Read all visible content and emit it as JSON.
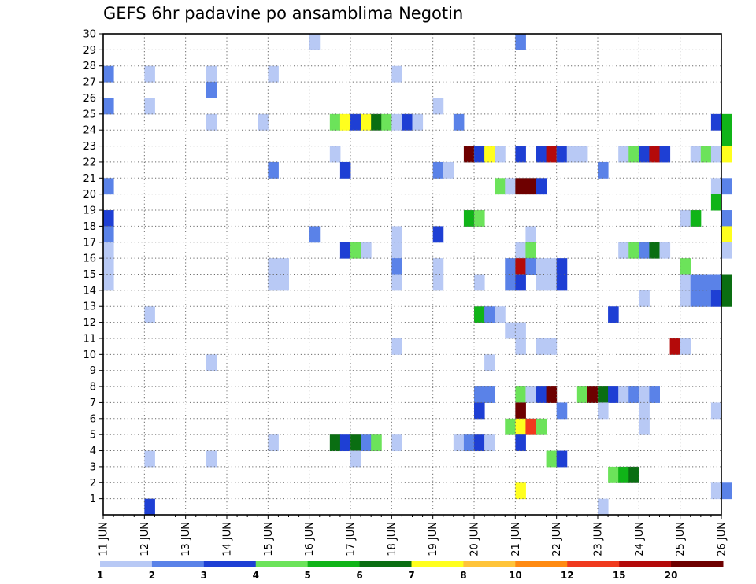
{
  "chart_data": {
    "type": "heatmap",
    "title": "GEFS 6hr padavine po ansamblima Negotin",
    "xlabel": "",
    "ylabel": "",
    "x_tick_labels": [
      "11 JUN",
      "12 JUN",
      "13 JUN",
      "14 JUN",
      "15 JUN",
      "16 JUN",
      "17 JUN",
      "18 JUN",
      "19 JUN",
      "20 JUN",
      "21 JUN",
      "22 JUN",
      "23 JUN",
      "24 JUN",
      "25 JUN",
      "26 JUN"
    ],
    "y_tick_labels": [
      "1",
      "2",
      "3",
      "4",
      "5",
      "6",
      "7",
      "8",
      "9",
      "10",
      "11",
      "12",
      "13",
      "14",
      "15",
      "16",
      "17",
      "18",
      "19",
      "20",
      "21",
      "22",
      "23",
      "24",
      "25",
      "26",
      "27",
      "28",
      "29",
      "30"
    ],
    "x_step": "6hr",
    "grid": true,
    "legend": {
      "placement": "bottom",
      "labels": [
        "1",
        "2",
        "3",
        "4",
        "5",
        "6",
        "7",
        "8",
        "10",
        "12",
        "15",
        "20"
      ],
      "colors": [
        "#b8c9f5",
        "#5a82e8",
        "#1e3fd4",
        "#6ce35a",
        "#10b418",
        "#0a6e12",
        "#ffff1e",
        "#ffc43a",
        "#ff8a12",
        "#f03a1e",
        "#b40a0a",
        "#6e0000"
      ]
    },
    "data": [
      {
        "member": 30,
        "values": [
          [
            1,
            10
          ],
          [
            2,
            20
          ],
          [
            1,
            40.5
          ],
          [
            3,
            41
          ]
        ]
      },
      {
        "member": 29,
        "values": [
          [
            2,
            39
          ],
          [
            1,
            43.5
          ],
          [
            2,
            46
          ],
          [
            3,
            46.5
          ]
        ]
      },
      {
        "member": 28,
        "values": [
          [
            2,
            0
          ],
          [
            1,
            2
          ],
          [
            1,
            5
          ],
          [
            1,
            8
          ],
          [
            1,
            14
          ],
          [
            4,
            36.5
          ],
          [
            5,
            37
          ],
          [
            1,
            38
          ],
          [
            2,
            38.5
          ]
        ]
      },
      {
        "member": 27,
        "values": [
          [
            2,
            5
          ],
          [
            1,
            43.5
          ],
          [
            2,
            44
          ]
        ]
      },
      {
        "member": 26,
        "values": [
          [
            2,
            0
          ],
          [
            1,
            2
          ],
          [
            1,
            16
          ],
          [
            3,
            43.5
          ]
        ]
      },
      {
        "member": 25,
        "values": [
          [
            1,
            5
          ],
          [
            1,
            7.5
          ],
          [
            4,
            11
          ],
          [
            7,
            11.5
          ],
          [
            3,
            12
          ],
          [
            7,
            12.5
          ],
          [
            6,
            13
          ],
          [
            4,
            13.5
          ],
          [
            1,
            14
          ],
          [
            3,
            14.5
          ],
          [
            1,
            15
          ],
          [
            2,
            17
          ],
          [
            3,
            29.5
          ],
          [
            5,
            30
          ]
        ]
      },
      {
        "member": 24,
        "values": [
          [
            1,
            39
          ],
          [
            1,
            39.5
          ],
          [
            2,
            43.5
          ],
          [
            2,
            44
          ],
          [
            4,
            46
          ],
          [
            5,
            30
          ]
        ]
      },
      {
        "member": 23,
        "values": [
          [
            1,
            11
          ],
          [
            13,
            17.5
          ],
          [
            3,
            18
          ],
          [
            7,
            18.5
          ],
          [
            1,
            19
          ],
          [
            3,
            20
          ],
          [
            3,
            21
          ],
          [
            11,
            21.5
          ],
          [
            3,
            22
          ],
          [
            1,
            22.5
          ],
          [
            1,
            23
          ],
          [
            1,
            25
          ],
          [
            4,
            25.5
          ],
          [
            3,
            26
          ],
          [
            11,
            26.5
          ],
          [
            3,
            27
          ],
          [
            1,
            28.5
          ],
          [
            4,
            29
          ],
          [
            1,
            29.5
          ],
          [
            7,
            30
          ]
        ]
      },
      {
        "member": 22,
        "values": [
          [
            2,
            8
          ],
          [
            3,
            11.5
          ],
          [
            2,
            16
          ],
          [
            1,
            16.5
          ],
          [
            2,
            24
          ]
        ]
      },
      {
        "member": 21,
        "values": [
          [
            2,
            0
          ],
          [
            4,
            19
          ],
          [
            1,
            19.5
          ],
          [
            14,
            20
          ],
          [
            13,
            20.5
          ],
          [
            3,
            21
          ],
          [
            1,
            29.5
          ],
          [
            2,
            30
          ]
        ]
      },
      {
        "member": 20,
        "values": [
          [
            5,
            29.5
          ]
        ]
      },
      {
        "member": 19,
        "values": [
          [
            3,
            0
          ],
          [
            5,
            17.5
          ],
          [
            4,
            18
          ],
          [
            1,
            28
          ],
          [
            5,
            28.5
          ],
          [
            2,
            30
          ]
        ]
      },
      {
        "member": 18,
        "values": [
          [
            2,
            0
          ],
          [
            2,
            10
          ],
          [
            1,
            14
          ],
          [
            3,
            16
          ],
          [
            1,
            20.5
          ],
          [
            7,
            30
          ]
        ]
      },
      {
        "member": 17,
        "values": [
          [
            1,
            0
          ],
          [
            3,
            11.5
          ],
          [
            4,
            12
          ],
          [
            1,
            12.5
          ],
          [
            1,
            14
          ],
          [
            1,
            20
          ],
          [
            4,
            20.5
          ],
          [
            1,
            25
          ],
          [
            4,
            25.5
          ],
          [
            2,
            26
          ],
          [
            6,
            26.5
          ],
          [
            1,
            27
          ],
          [
            1,
            30
          ]
        ]
      },
      {
        "member": 16,
        "values": [
          [
            1,
            0
          ],
          [
            1,
            8
          ],
          [
            1,
            8.5
          ],
          [
            2,
            14
          ],
          [
            1,
            16
          ],
          [
            2,
            19.5
          ],
          [
            11,
            20
          ],
          [
            2,
            20.5
          ],
          [
            1,
            21
          ],
          [
            1,
            21.5
          ],
          [
            3,
            22
          ],
          [
            4,
            28
          ]
        ]
      },
      {
        "member": 15,
        "values": [
          [
            1,
            0
          ],
          [
            1,
            8
          ],
          [
            1,
            8.5
          ],
          [
            1,
            14
          ],
          [
            1,
            16
          ],
          [
            1,
            18
          ],
          [
            2,
            19.5
          ],
          [
            3,
            20
          ],
          [
            1,
            21
          ],
          [
            1,
            21.5
          ],
          [
            3,
            22
          ],
          [
            4,
            28
          ],
          [
            1,
            28
          ],
          [
            2,
            28.5
          ],
          [
            2,
            29
          ],
          [
            2,
            29.5
          ],
          [
            6,
            30
          ]
        ]
      },
      {
        "member": 14,
        "values": [
          [
            1,
            26
          ],
          [
            1,
            28
          ],
          [
            2,
            28.5
          ],
          [
            2,
            29
          ],
          [
            3,
            29.5
          ],
          [
            6,
            30
          ]
        ]
      },
      {
        "member": 13,
        "values": [
          [
            1,
            2
          ],
          [
            5,
            18
          ],
          [
            2,
            18.5
          ],
          [
            1,
            19
          ],
          [
            3,
            24.5
          ]
        ]
      },
      {
        "member": 12,
        "values": [
          [
            1,
            19.5
          ],
          [
            1,
            20
          ]
        ]
      },
      {
        "member": 11,
        "values": [
          [
            1,
            14
          ],
          [
            1,
            20
          ],
          [
            1,
            21
          ],
          [
            1,
            21.5
          ],
          [
            11,
            27.5
          ],
          [
            1,
            28
          ]
        ]
      },
      {
        "member": 10,
        "values": [
          [
            1,
            5
          ],
          [
            1,
            18.5
          ]
        ]
      },
      {
        "member": 8,
        "values": [
          [
            2,
            18
          ],
          [
            2,
            18.5
          ],
          [
            4,
            20
          ],
          [
            1,
            20.5
          ],
          [
            3,
            21
          ],
          [
            13,
            21.5
          ],
          [
            4,
            23
          ],
          [
            13,
            23.5
          ],
          [
            6,
            24
          ],
          [
            3,
            24.5
          ],
          [
            1,
            25
          ],
          [
            2,
            25.5
          ],
          [
            1,
            26
          ],
          [
            2,
            26.5
          ]
        ]
      },
      {
        "member": 7,
        "values": [
          [
            3,
            18
          ],
          [
            13,
            20
          ],
          [
            2,
            22
          ],
          [
            1,
            24
          ],
          [
            1,
            26
          ],
          [
            1,
            29.5
          ]
        ]
      },
      {
        "member": 6,
        "values": [
          [
            4,
            19.5
          ],
          [
            7,
            20
          ],
          [
            10,
            20.5
          ],
          [
            4,
            21
          ],
          [
            1,
            26
          ]
        ]
      },
      {
        "member": 5,
        "values": [
          [
            1,
            8
          ],
          [
            6,
            11
          ],
          [
            3,
            11.5
          ],
          [
            6,
            12
          ],
          [
            2,
            12.5
          ],
          [
            4,
            13
          ],
          [
            1,
            14
          ],
          [
            1,
            17
          ],
          [
            2,
            17.5
          ],
          [
            3,
            18
          ],
          [
            1,
            18.5
          ],
          [
            3,
            20
          ]
        ]
      },
      {
        "member": 4,
        "values": [
          [
            1,
            2
          ],
          [
            1,
            5
          ],
          [
            1,
            12
          ],
          [
            4,
            21.5
          ],
          [
            3,
            22
          ]
        ]
      },
      {
        "member": 3,
        "values": [
          [
            4,
            24.5
          ],
          [
            5,
            25
          ],
          [
            6,
            25.5
          ]
        ]
      },
      {
        "member": 2,
        "values": [
          [
            7,
            20
          ],
          [
            1,
            29.5
          ],
          [
            2,
            30
          ]
        ]
      },
      {
        "member": 1,
        "values": [
          [
            3,
            2
          ],
          [
            1,
            24
          ]
        ]
      }
    ]
  }
}
